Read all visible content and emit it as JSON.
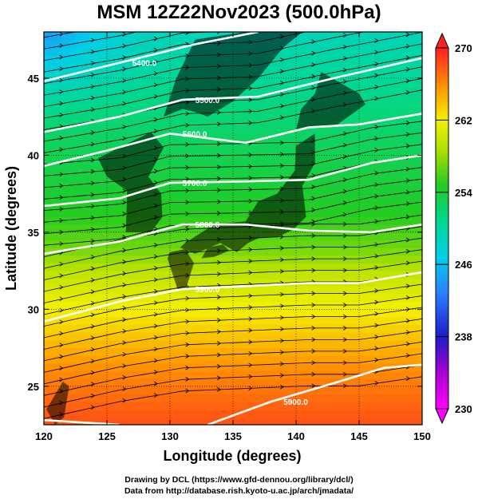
{
  "title": "MSM 12Z22Nov2023 (500.0hPa)",
  "chart_data": {
    "type": "heatmap",
    "title": "MSM 12Z22Nov2023 (500.0hPa)",
    "xlabel": "Longitude (degrees)",
    "ylabel": "Latitude  (degrees)",
    "xlim": [
      120,
      150
    ],
    "ylim": [
      22.5,
      48
    ],
    "x_ticks": [
      "120",
      "125",
      "130",
      "135",
      "140",
      "145",
      "150"
    ],
    "y_ticks": [
      "25",
      "30",
      "35",
      "40",
      "45"
    ],
    "grid": true,
    "colorbar": {
      "min": 230,
      "max": 270,
      "ticks": [
        "230",
        "238",
        "246",
        "254",
        "262",
        "270"
      ],
      "placement": "right"
    },
    "color_field": {
      "name": "temperature",
      "lat_profile": [
        [
          23,
          268
        ],
        [
          26,
          266
        ],
        [
          28,
          264
        ],
        [
          30,
          262
        ],
        [
          32,
          260
        ],
        [
          34,
          257
        ],
        [
          36,
          255
        ],
        [
          38,
          254
        ],
        [
          40,
          253
        ],
        [
          42,
          252
        ],
        [
          44,
          251
        ],
        [
          46,
          250
        ],
        [
          48,
          249
        ]
      ],
      "cold_core": {
        "lon": 120,
        "lat": 48,
        "value": 244
      }
    },
    "contours": [
      {
        "label": "5400.0",
        "points": [
          [
            120,
            44.8
          ],
          [
            126,
            46
          ],
          [
            132,
            47.2
          ],
          [
            137,
            48
          ]
        ]
      },
      {
        "label": "5500.0",
        "points": [
          [
            120,
            41.5
          ],
          [
            126,
            42.5
          ],
          [
            131,
            43.6
          ],
          [
            137,
            43.8
          ],
          [
            143,
            45
          ],
          [
            150,
            46.3
          ]
        ]
      },
      {
        "label": "5600.0",
        "points": [
          [
            120,
            39.3
          ],
          [
            125,
            40.3
          ],
          [
            130,
            41.4
          ],
          [
            136,
            40.8
          ],
          [
            141,
            41.8
          ],
          [
            145,
            42
          ],
          [
            150,
            42.7
          ]
        ]
      },
      {
        "label": "5700.0",
        "points": [
          [
            120,
            36.7
          ],
          [
            126,
            37.2
          ],
          [
            130,
            38.2
          ],
          [
            136,
            38.3
          ],
          [
            141,
            38.4
          ],
          [
            146,
            39.5
          ],
          [
            150,
            40
          ]
        ]
      },
      {
        "label": "5800.0",
        "points": [
          [
            120,
            33.6
          ],
          [
            126,
            34.4
          ],
          [
            131,
            35.5
          ],
          [
            136,
            35.5
          ],
          [
            141,
            35.1
          ],
          [
            146,
            35
          ],
          [
            150,
            35.5
          ]
        ]
      },
      {
        "label": "5900.0",
        "points": [
          [
            120,
            29.2
          ],
          [
            126,
            30.5
          ],
          [
            131,
            31.3
          ],
          [
            136,
            31.5
          ],
          [
            141,
            31.7
          ],
          [
            145,
            31.7
          ],
          [
            150,
            32.4
          ]
        ]
      },
      {
        "label": "5900.0",
        "points": [
          [
            120,
            22.8
          ],
          [
            126,
            22.5
          ]
        ]
      },
      {
        "label": "5900.0",
        "points": [
          [
            133,
            22.5
          ],
          [
            138,
            24
          ],
          [
            143,
            25.2
          ],
          [
            147,
            26.2
          ],
          [
            150,
            26.4
          ]
        ]
      }
    ],
    "streamline_wind": "westerly, flow roughly parallel to the contours"
  },
  "credits": [
    "Drawing by DCL (https://www.gfd-dennou.org/library/dcl/)",
    "Data from http://database.rish.kyoto-u.ac.jp/arch/jmadata/"
  ]
}
